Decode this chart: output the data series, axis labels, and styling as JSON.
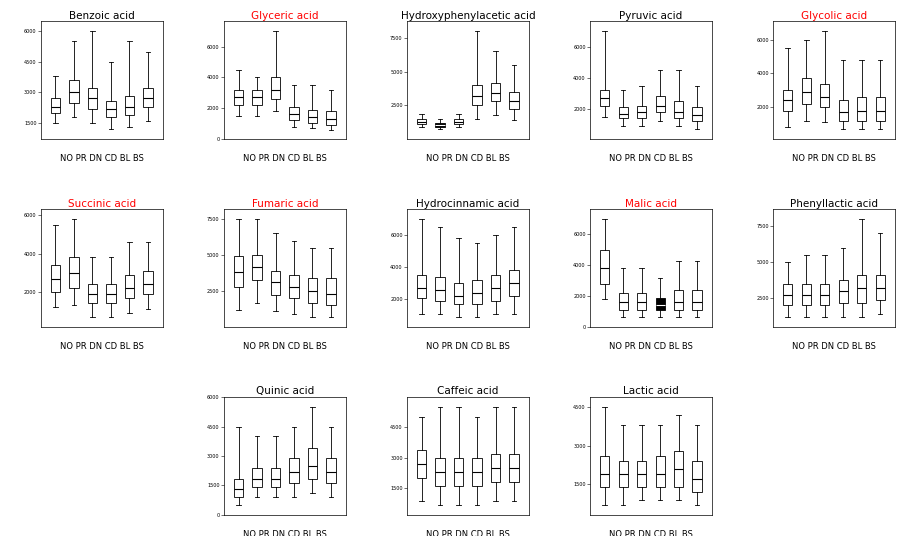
{
  "charts": [
    {
      "title": "Benzoic acid",
      "title_color": "black",
      "boxes": [
        {
          "whislo": 1500,
          "q1": 2000,
          "med": 2300,
          "q3": 2700,
          "whishi": 3800
        },
        {
          "whislo": 1800,
          "q1": 2500,
          "med": 3000,
          "q3": 3600,
          "whishi": 5500
        },
        {
          "whislo": 1500,
          "q1": 2200,
          "med": 2700,
          "q3": 3200,
          "whishi": 6000
        },
        {
          "whislo": 1200,
          "q1": 1800,
          "med": 2200,
          "q3": 2600,
          "whishi": 4500
        },
        {
          "whislo": 1300,
          "q1": 1900,
          "med": 2300,
          "q3": 2800,
          "whishi": 5500
        },
        {
          "whislo": 1600,
          "q1": 2300,
          "med": 2700,
          "q3": 3200,
          "whishi": 5000
        }
      ],
      "ylim_auto": true,
      "filled": []
    },
    {
      "title": "Glyceric acid",
      "title_color": "red",
      "boxes": [
        {
          "whislo": 1500,
          "q1": 2200,
          "med": 2700,
          "q3": 3200,
          "whishi": 4500
        },
        {
          "whislo": 1500,
          "q1": 2200,
          "med": 2700,
          "q3": 3200,
          "whishi": 4000
        },
        {
          "whislo": 1800,
          "q1": 2600,
          "med": 3200,
          "q3": 4000,
          "whishi": 7000
        },
        {
          "whislo": 800,
          "q1": 1200,
          "med": 1600,
          "q3": 2100,
          "whishi": 3500
        },
        {
          "whislo": 700,
          "q1": 1000,
          "med": 1400,
          "q3": 1900,
          "whishi": 3500
        },
        {
          "whislo": 600,
          "q1": 900,
          "med": 1300,
          "q3": 1800,
          "whishi": 3200
        }
      ],
      "ylim_auto": true,
      "filled": []
    },
    {
      "title": "Hydroxyphenylacetic acid",
      "title_color": "black",
      "boxes": [
        {
          "whislo": 900,
          "q1": 1100,
          "med": 1300,
          "q3": 1500,
          "whishi": 1900
        },
        {
          "whislo": 750,
          "q1": 900,
          "med": 1050,
          "q3": 1200,
          "whishi": 1500
        },
        {
          "whislo": 900,
          "q1": 1100,
          "med": 1300,
          "q3": 1500,
          "whishi": 1900
        },
        {
          "whislo": 1500,
          "q1": 2500,
          "med": 3200,
          "q3": 4000,
          "whishi": 8000
        },
        {
          "whislo": 1800,
          "q1": 2800,
          "med": 3400,
          "q3": 4200,
          "whishi": 6500
        },
        {
          "whislo": 1400,
          "q1": 2200,
          "med": 2800,
          "q3": 3500,
          "whishi": 5500
        }
      ],
      "ylim_auto": true,
      "filled": [
        1
      ]
    },
    {
      "title": "Pyruvic acid",
      "title_color": "black",
      "boxes": [
        {
          "whislo": 1500,
          "q1": 2200,
          "med": 2700,
          "q3": 3200,
          "whishi": 7000
        },
        {
          "whislo": 900,
          "q1": 1400,
          "med": 1700,
          "q3": 2100,
          "whishi": 3200
        },
        {
          "whislo": 900,
          "q1": 1400,
          "med": 1800,
          "q3": 2200,
          "whishi": 3500
        },
        {
          "whislo": 1200,
          "q1": 1800,
          "med": 2200,
          "q3": 2800,
          "whishi": 4500
        },
        {
          "whislo": 900,
          "q1": 1400,
          "med": 1800,
          "q3": 2500,
          "whishi": 4500
        },
        {
          "whislo": 700,
          "q1": 1200,
          "med": 1600,
          "q3": 2100,
          "whishi": 3500
        }
      ],
      "ylim_auto": true,
      "filled": []
    },
    {
      "title": "Glycolic acid",
      "title_color": "red",
      "boxes": [
        {
          "whislo": 800,
          "q1": 1800,
          "med": 2400,
          "q3": 3000,
          "whishi": 5500
        },
        {
          "whislo": 1200,
          "q1": 2200,
          "med": 2900,
          "q3": 3700,
          "whishi": 6000
        },
        {
          "whislo": 1100,
          "q1": 2000,
          "med": 2600,
          "q3": 3400,
          "whishi": 6500
        },
        {
          "whislo": 700,
          "q1": 1200,
          "med": 1700,
          "q3": 2400,
          "whishi": 4800
        },
        {
          "whislo": 700,
          "q1": 1200,
          "med": 1800,
          "q3": 2600,
          "whishi": 4800
        },
        {
          "whislo": 700,
          "q1": 1200,
          "med": 1800,
          "q3": 2600,
          "whishi": 4800
        }
      ],
      "ylim_auto": true,
      "filled": []
    },
    {
      "title": "Succinic acid",
      "title_color": "red",
      "boxes": [
        {
          "whislo": 1200,
          "q1": 2000,
          "med": 2700,
          "q3": 3400,
          "whishi": 5500
        },
        {
          "whislo": 1300,
          "q1": 2200,
          "med": 3000,
          "q3": 3800,
          "whishi": 5800
        },
        {
          "whislo": 700,
          "q1": 1400,
          "med": 1900,
          "q3": 2400,
          "whishi": 3800
        },
        {
          "whislo": 700,
          "q1": 1400,
          "med": 1900,
          "q3": 2400,
          "whishi": 3800
        },
        {
          "whislo": 900,
          "q1": 1700,
          "med": 2200,
          "q3": 2900,
          "whishi": 4600
        },
        {
          "whislo": 1100,
          "q1": 1900,
          "med": 2400,
          "q3": 3100,
          "whishi": 4600
        }
      ],
      "ylim_auto": true,
      "filled": []
    },
    {
      "title": "Fumaric acid",
      "title_color": "red",
      "boxes": [
        {
          "whislo": 1200,
          "q1": 2800,
          "med": 3800,
          "q3": 4900,
          "whishi": 7500
        },
        {
          "whislo": 1700,
          "q1": 3300,
          "med": 4200,
          "q3": 5000,
          "whishi": 7500
        },
        {
          "whislo": 1100,
          "q1": 2200,
          "med": 3100,
          "q3": 3900,
          "whishi": 6500
        },
        {
          "whislo": 900,
          "q1": 2000,
          "med": 2800,
          "q3": 3600,
          "whishi": 6000
        },
        {
          "whislo": 700,
          "q1": 1700,
          "med": 2500,
          "q3": 3400,
          "whishi": 5500
        },
        {
          "whislo": 700,
          "q1": 1500,
          "med": 2300,
          "q3": 3400,
          "whishi": 5500
        }
      ],
      "ylim_auto": true,
      "filled": []
    },
    {
      "title": "Hydrocinnamic acid",
      "title_color": "black",
      "boxes": [
        {
          "whislo": 1100,
          "q1": 2100,
          "med": 2700,
          "q3": 3500,
          "whishi": 7000
        },
        {
          "whislo": 1100,
          "q1": 1900,
          "med": 2600,
          "q3": 3400,
          "whishi": 6500
        },
        {
          "whislo": 900,
          "q1": 1700,
          "med": 2200,
          "q3": 3000,
          "whishi": 5800
        },
        {
          "whislo": 900,
          "q1": 1700,
          "med": 2400,
          "q3": 3200,
          "whishi": 5500
        },
        {
          "whislo": 1100,
          "q1": 1900,
          "med": 2700,
          "q3": 3500,
          "whishi": 6000
        },
        {
          "whislo": 1100,
          "q1": 2200,
          "med": 3000,
          "q3": 3800,
          "whishi": 6500
        }
      ],
      "ylim_auto": true,
      "filled": []
    },
    {
      "title": "Malic acid",
      "title_color": "red",
      "boxes": [
        {
          "whislo": 1800,
          "q1": 2800,
          "med": 3800,
          "q3": 5000,
          "whishi": 7000
        },
        {
          "whislo": 600,
          "q1": 1100,
          "med": 1600,
          "q3": 2200,
          "whishi": 3800
        },
        {
          "whislo": 600,
          "q1": 1100,
          "med": 1600,
          "q3": 2200,
          "whishi": 3800
        },
        {
          "whislo": 600,
          "q1": 1100,
          "med": 1400,
          "q3": 1900,
          "whishi": 3200
        },
        {
          "whislo": 600,
          "q1": 1100,
          "med": 1600,
          "q3": 2400,
          "whishi": 4300
        },
        {
          "whislo": 600,
          "q1": 1100,
          "med": 1600,
          "q3": 2400,
          "whishi": 4300
        }
      ],
      "ylim_auto": true,
      "filled": [
        3
      ]
    },
    {
      "title": "Phenyllactic acid",
      "title_color": "black",
      "boxes": [
        {
          "whislo": 1200,
          "q1": 2000,
          "med": 2700,
          "q3": 3500,
          "whishi": 5000
        },
        {
          "whislo": 1200,
          "q1": 2000,
          "med": 2700,
          "q3": 3500,
          "whishi": 5500
        },
        {
          "whislo": 1200,
          "q1": 2000,
          "med": 2700,
          "q3": 3500,
          "whishi": 5500
        },
        {
          "whislo": 1200,
          "q1": 2200,
          "med": 3000,
          "q3": 3800,
          "whishi": 6000
        },
        {
          "whislo": 1200,
          "q1": 2200,
          "med": 3200,
          "q3": 4100,
          "whishi": 8000
        },
        {
          "whislo": 1400,
          "q1": 2400,
          "med": 3200,
          "q3": 4100,
          "whishi": 7000
        }
      ],
      "ylim_auto": true,
      "filled": []
    },
    {
      "title": "Quinic acid",
      "title_color": "black",
      "boxes": [
        {
          "whislo": 500,
          "q1": 900,
          "med": 1300,
          "q3": 1800,
          "whishi": 4500
        },
        {
          "whislo": 900,
          "q1": 1400,
          "med": 1800,
          "q3": 2400,
          "whishi": 4000
        },
        {
          "whislo": 900,
          "q1": 1400,
          "med": 1800,
          "q3": 2400,
          "whishi": 4000
        },
        {
          "whislo": 900,
          "q1": 1600,
          "med": 2200,
          "q3": 2900,
          "whishi": 4500
        },
        {
          "whislo": 1100,
          "q1": 1800,
          "med": 2500,
          "q3": 3400,
          "whishi": 5500
        },
        {
          "whislo": 900,
          "q1": 1600,
          "med": 2200,
          "q3": 2900,
          "whishi": 4500
        }
      ],
      "ylim_auto": true,
      "filled": []
    },
    {
      "title": "Caffeic acid",
      "title_color": "black",
      "boxes": [
        {
          "whislo": 900,
          "q1": 2000,
          "med": 2700,
          "q3": 3400,
          "whishi": 5000
        },
        {
          "whislo": 700,
          "q1": 1600,
          "med": 2300,
          "q3": 3000,
          "whishi": 5500
        },
        {
          "whislo": 700,
          "q1": 1600,
          "med": 2300,
          "q3": 3000,
          "whishi": 5500
        },
        {
          "whislo": 700,
          "q1": 1600,
          "med": 2300,
          "q3": 3000,
          "whishi": 5000
        },
        {
          "whislo": 900,
          "q1": 1800,
          "med": 2500,
          "q3": 3200,
          "whishi": 5500
        },
        {
          "whislo": 900,
          "q1": 1800,
          "med": 2500,
          "q3": 3200,
          "whishi": 5500
        }
      ],
      "ylim_auto": true,
      "filled": []
    },
    {
      "title": "Lactic acid",
      "title_color": "black",
      "boxes": [
        {
          "whislo": 700,
          "q1": 1400,
          "med": 1900,
          "q3": 2600,
          "whishi": 4500
        },
        {
          "whislo": 700,
          "q1": 1400,
          "med": 1900,
          "q3": 2400,
          "whishi": 3800
        },
        {
          "whislo": 900,
          "q1": 1400,
          "med": 1900,
          "q3": 2400,
          "whishi": 3800
        },
        {
          "whislo": 900,
          "q1": 1400,
          "med": 1900,
          "q3": 2600,
          "whishi": 3800
        },
        {
          "whislo": 900,
          "q1": 1400,
          "med": 2100,
          "q3": 2800,
          "whishi": 4200
        },
        {
          "whislo": 700,
          "q1": 1200,
          "med": 1700,
          "q3": 2400,
          "whishi": 3800
        }
      ],
      "ylim_auto": true,
      "filled": []
    }
  ],
  "layout": [
    [
      0,
      1,
      2,
      3,
      4
    ],
    [
      5,
      6,
      7,
      8,
      9
    ],
    [
      10,
      11,
      12
    ]
  ],
  "figsize": [
    9.04,
    5.36
  ],
  "dpi": 100,
  "background_color": "white",
  "xlabel_label": "NO PR DN CD BL BS",
  "xlabel_fontsize": 6.0,
  "title_fontsize": 7.5
}
